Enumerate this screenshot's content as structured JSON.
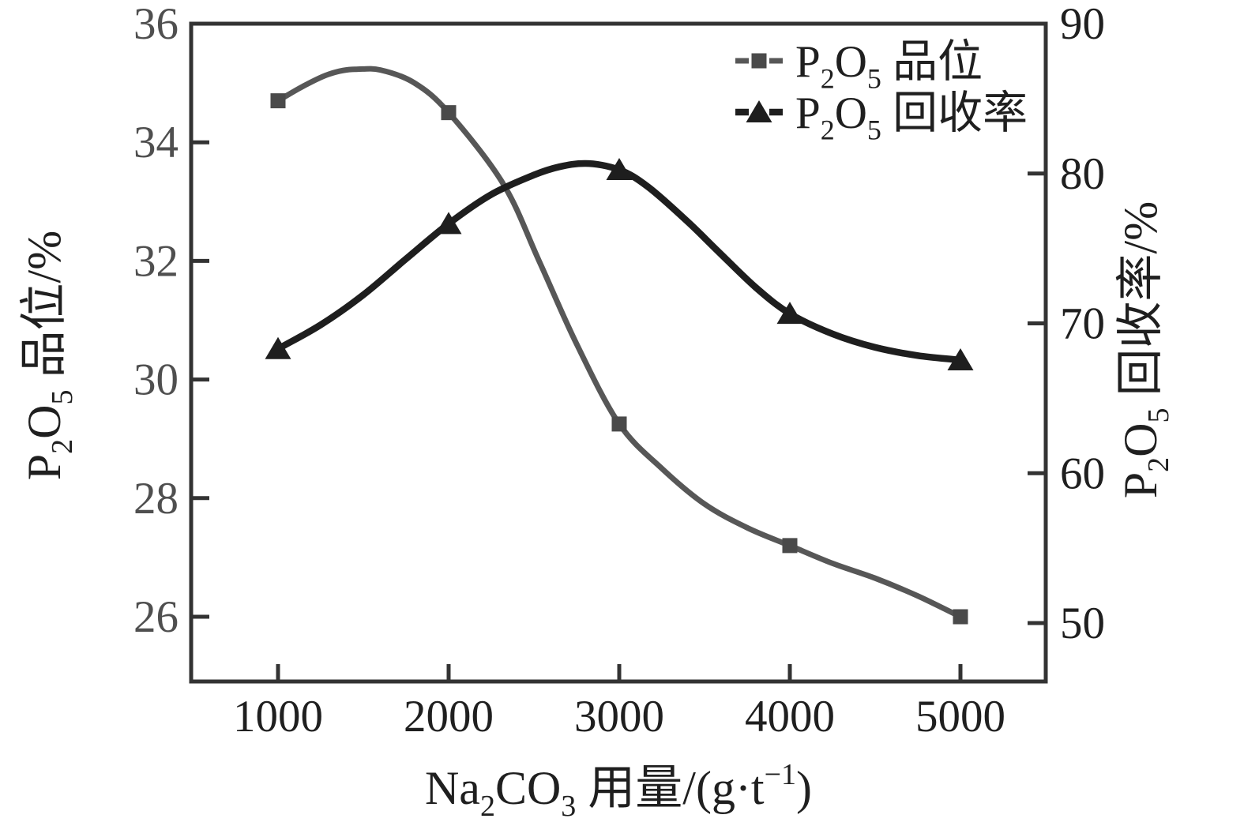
{
  "chart_data": {
    "type": "line",
    "title": "",
    "background": "#ffffff",
    "frame_color": "#333333",
    "grid": false,
    "x": [
      1000,
      2000,
      3000,
      4000,
      5000
    ],
    "x_axis": {
      "title": "Na2CO3 用量/(g·t-1)",
      "title_parts": [
        [
          "Na",
          ""
        ],
        [
          "2",
          "sub"
        ],
        [
          "CO",
          ""
        ],
        [
          "3",
          "sub"
        ],
        [
          " 用量/(g·t",
          ""
        ],
        [
          "−1",
          "sup"
        ],
        [
          ")",
          ""
        ]
      ],
      "ticks": [
        "1000",
        "2000",
        "3000",
        "4000",
        "5000"
      ],
      "tick_values": [
        1000,
        2000,
        3000,
        4000,
        5000
      ],
      "range": [
        490,
        5500
      ],
      "tick_color": "#1f1f1f"
    },
    "left_axis": {
      "title": "P2O5 品位/%",
      "title_parts": [
        [
          "P",
          ""
        ],
        [
          "2",
          "sub"
        ],
        [
          "O",
          ""
        ],
        [
          "5",
          "sub"
        ],
        [
          " 品位/%",
          ""
        ]
      ],
      "ticks": [
        "36",
        "34",
        "32",
        "30",
        "28",
        "26"
      ],
      "tick_values": [
        36,
        34,
        32,
        30,
        28,
        26
      ],
      "range": [
        24.9,
        36
      ],
      "tick_color": "#4f4f4f",
      "title_color": "#1f1f1f"
    },
    "right_axis": {
      "title": "P2O5 回收率/%",
      "title_parts": [
        [
          "P",
          ""
        ],
        [
          "2",
          "sub"
        ],
        [
          "O",
          ""
        ],
        [
          "5",
          "sub"
        ],
        [
          " 回收率/%",
          ""
        ]
      ],
      "ticks": [
        "90",
        "80",
        "70",
        "60",
        "50"
      ],
      "tick_values": [
        90,
        80,
        70,
        60,
        50
      ],
      "range": [
        46.1,
        90
      ],
      "tick_color": "#1f1f1f",
      "title_color": "#1f1f1f"
    },
    "series": [
      {
        "id": "grade",
        "name": "P2O5 品位",
        "label_parts": [
          [
            "P",
            ""
          ],
          [
            "2",
            "sub"
          ],
          [
            "O",
            ""
          ],
          [
            "5",
            "sub"
          ],
          [
            " 品位",
            ""
          ]
        ],
        "axis": "left",
        "marker": "square",
        "line_color": "#575757",
        "marker_color": "#4a4a4a",
        "values": [
          34.7,
          34.5,
          29.25,
          27.2,
          26.0
        ],
        "curve_points": [
          [
            1000,
            34.7
          ],
          [
            1150,
            34.95
          ],
          [
            1300,
            35.15
          ],
          [
            1450,
            35.23
          ],
          [
            1600,
            35.22
          ],
          [
            1800,
            35.0
          ],
          [
            2000,
            34.5
          ],
          [
            2320,
            33.3
          ],
          [
            2530,
            32.0
          ],
          [
            2750,
            30.6
          ],
          [
            3000,
            29.25
          ],
          [
            3250,
            28.5
          ],
          [
            3500,
            27.9
          ],
          [
            3750,
            27.5
          ],
          [
            4000,
            27.2
          ],
          [
            4250,
            26.9
          ],
          [
            4500,
            26.65
          ],
          [
            4750,
            26.35
          ],
          [
            5000,
            26.0
          ]
        ]
      },
      {
        "id": "recovery",
        "name": "P2O5 回收率",
        "label_parts": [
          [
            "P",
            ""
          ],
          [
            "2",
            "sub"
          ],
          [
            "O",
            ""
          ],
          [
            "5",
            "sub"
          ],
          [
            " 回收率",
            ""
          ]
        ],
        "axis": "right",
        "marker": "triangle",
        "line_color": "#1e1e1e",
        "marker_color": "#1e1e1e",
        "values": [
          68.3,
          76.65,
          80.25,
          70.65,
          67.55
        ],
        "curve_points": [
          [
            1000,
            68.3
          ],
          [
            1250,
            69.9
          ],
          [
            1500,
            71.9
          ],
          [
            1750,
            74.3
          ],
          [
            2000,
            76.65
          ],
          [
            2250,
            78.6
          ],
          [
            2500,
            79.9
          ],
          [
            2650,
            80.45
          ],
          [
            2800,
            80.67
          ],
          [
            3000,
            80.25
          ],
          [
            3170,
            79.1
          ],
          [
            3400,
            76.8
          ],
          [
            3580,
            74.8
          ],
          [
            3800,
            72.4
          ],
          [
            4000,
            70.65
          ],
          [
            4250,
            69.3
          ],
          [
            4500,
            68.4
          ],
          [
            4750,
            67.85
          ],
          [
            5000,
            67.55
          ]
        ]
      }
    ],
    "legend": {
      "position": "top-right",
      "entries": [
        "P2O5 品位",
        "P2O5 回收率"
      ]
    }
  }
}
